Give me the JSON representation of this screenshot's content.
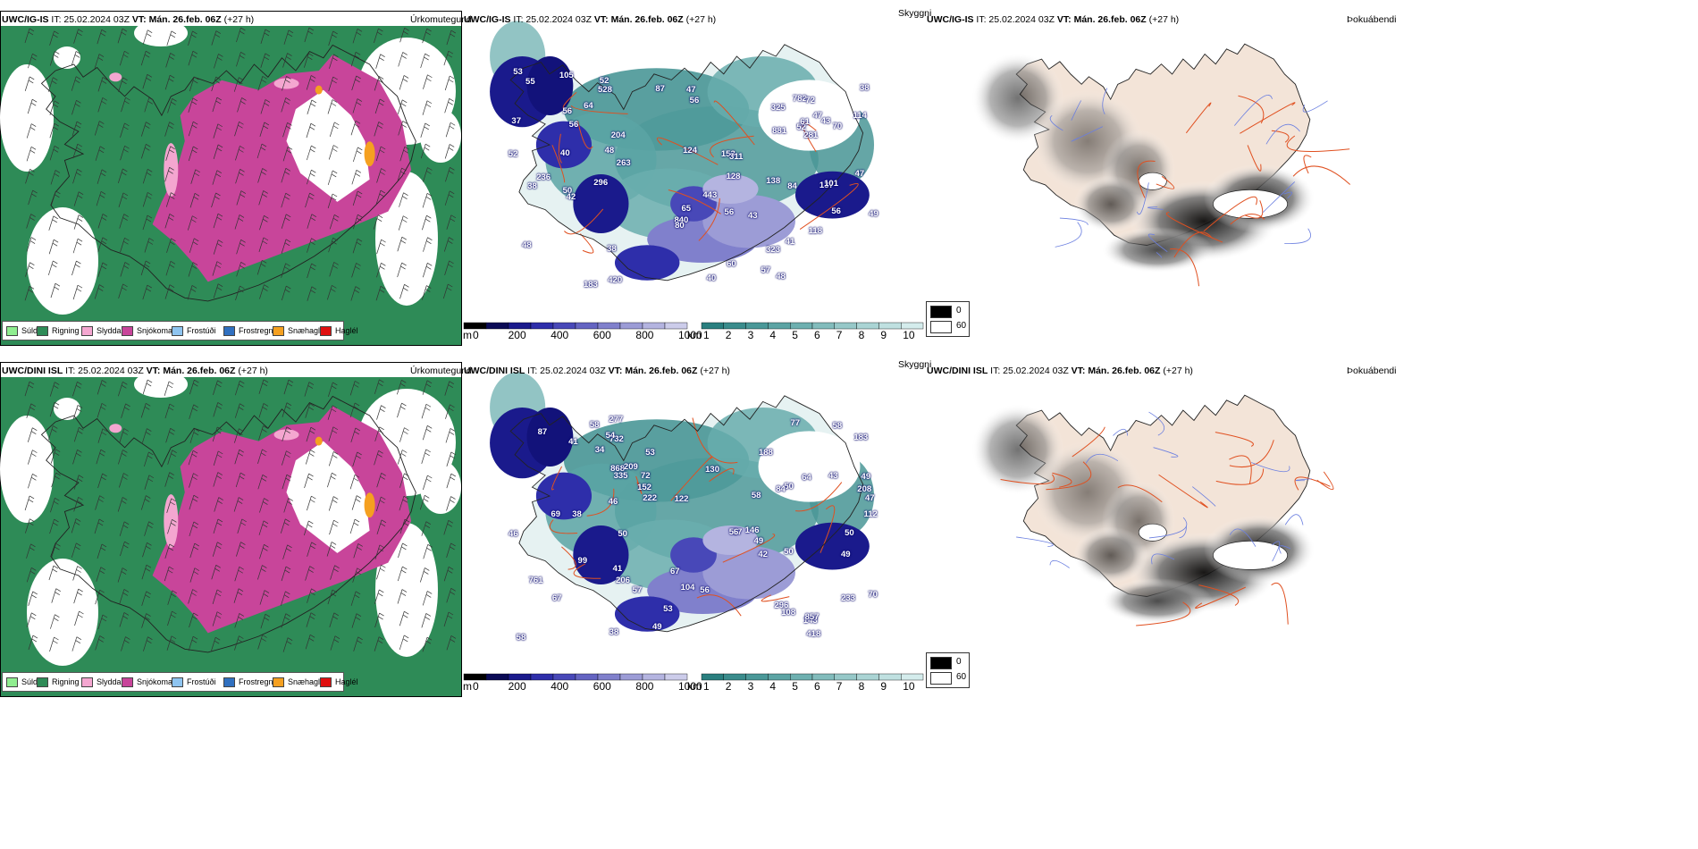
{
  "rows": [
    {
      "model": "UWC/IG-IS",
      "it_label": "IT: 25.02.2024 03Z",
      "vt_label": "VT: Mán. 26.feb. 06Z",
      "lead": "(+27 h)",
      "panel1_right": "Úrkomutegund",
      "panel2_right": "Skyggni",
      "panel3_right": "Þokuábendi",
      "visibility_labels": [
        "52",
        "48",
        "56",
        "105",
        "48",
        "50",
        "47",
        "42",
        "53",
        "56",
        "52",
        "41",
        "443",
        "420",
        "528",
        "881",
        "782",
        "183",
        "70",
        "38",
        "48",
        "56",
        "114",
        "56",
        "281",
        "263",
        "323",
        "236",
        "840",
        "325",
        "138",
        "40",
        "47",
        "52",
        "47",
        "56",
        "118",
        "153",
        "72",
        "204",
        "124",
        "55",
        "60",
        "64",
        "49",
        "57",
        "38",
        "84",
        "296",
        "61",
        "311",
        "137",
        "80",
        "87",
        "128",
        "43",
        "43",
        "101",
        "65",
        "40",
        "38",
        "37"
      ]
    },
    {
      "model": "UWC/DINI ISL",
      "it_label": "IT: 25.02.2024 03Z",
      "vt_label": "VT: Mán. 26.feb. 06Z",
      "lead": "(+27 h)",
      "panel1_right": "Úrkomutegund",
      "panel2_right": "Skyggni",
      "panel3_right": "Þokuábendi",
      "visibility_labels": [
        "46",
        "67",
        "57",
        "50",
        "57",
        "49",
        "104",
        "46",
        "42",
        "58",
        "49",
        "69",
        "188",
        "152",
        "732",
        "418",
        "70",
        "43",
        "56",
        "868",
        "50",
        "64",
        "67",
        "56",
        "143",
        "209",
        "58",
        "84",
        "233",
        "296",
        "222",
        "50",
        "50",
        "335",
        "857",
        "761",
        "41",
        "53",
        "277",
        "49",
        "58",
        "54",
        "122",
        "58",
        "183",
        "146",
        "87",
        "41",
        "208",
        "130",
        "112",
        "49",
        "206",
        "99",
        "108",
        "53",
        "72",
        "47",
        "77",
        "38",
        "38",
        "34"
      ]
    }
  ],
  "precip_legend": [
    {
      "label": "Súld",
      "color": "#90ee90"
    },
    {
      "label": "Rigning",
      "color": "#2e8b57"
    },
    {
      "label": "Slydda",
      "color": "#f4a6d0"
    },
    {
      "label": "Snjókoma",
      "color": "#c8459a"
    },
    {
      "label": "Frostúði",
      "color": "#8ec4f0"
    },
    {
      "label": "Frostregn",
      "color": "#3070c0"
    },
    {
      "label": "Snæhagl",
      "color": "#f5a020"
    },
    {
      "label": "Haglél",
      "color": "#e01010"
    }
  ],
  "vis_m_bar": {
    "unit": "m",
    "ticks": [
      "0",
      "200",
      "400",
      "600",
      "800",
      "1000"
    ],
    "colors": [
      "#000000",
      "#0a0a55",
      "#1a1a8c",
      "#2e2eaa",
      "#4848b8",
      "#6464c2",
      "#8080cc",
      "#9c9cd6",
      "#b4b4e0",
      "#ccccea"
    ]
  },
  "vis_km_bar": {
    "unit": "km",
    "ticks": [
      "1",
      "2",
      "3",
      "4",
      "5",
      "6",
      "7",
      "8",
      "9",
      "10"
    ],
    "colors": [
      "#2a7f7f",
      "#3a8c8c",
      "#4a9898",
      "#5ca4a4",
      "#6eb0b0",
      "#82bcbc",
      "#96c8c8",
      "#aad4d4",
      "#bfe0e0",
      "#d4ecec"
    ]
  },
  "fog_legend": [
    {
      "label": "0",
      "color": "#000000"
    },
    {
      "label": "60",
      "color": "#ffffff"
    }
  ],
  "colors": {
    "rain": "#2e8b57",
    "snow": "#c8459a",
    "sleet": "#f4a6d0",
    "snow_pellets": "#f5a020",
    "land": "#f3e4d8",
    "roads": "#e05020",
    "rivers": "#6b7fe0"
  }
}
